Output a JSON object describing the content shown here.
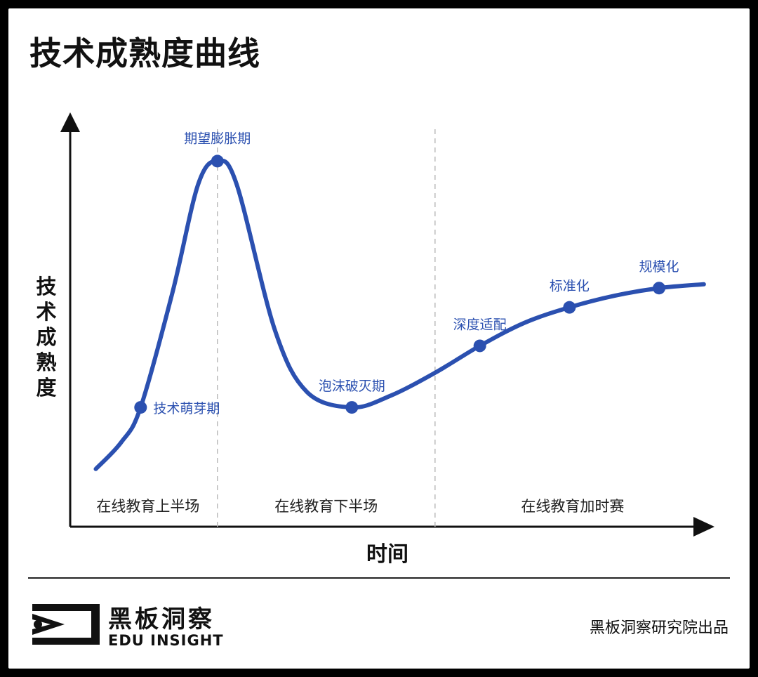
{
  "title": "技术成熟度曲线",
  "brand": {
    "name_cn": "黑板洞察",
    "name_en": "EDU INSIGHT",
    "credit": "黑板洞察研究院出品",
    "logo_icon": "eye-play-logo-icon"
  },
  "colors": {
    "curve": "#2b50b0",
    "label": "#2b50b0",
    "axis": "#111111",
    "guide": "#bbbbbb"
  },
  "chart_data": {
    "type": "line",
    "xlabel": "时间",
    "ylabel": "技术成熟度",
    "grid": false,
    "phases": [
      {
        "label": "在线教育上半场"
      },
      {
        "label": "在线教育下半场"
      },
      {
        "label": "在线教育加时赛"
      }
    ],
    "points": [
      {
        "label": "技术萌芽期",
        "label_pos": "right",
        "x": 0.11,
        "y": 0.31
      },
      {
        "label": "期望膨胀期",
        "label_pos": "above",
        "x": 0.23,
        "y": 0.95
      },
      {
        "label": "泡沫破灭期",
        "label_pos": "above",
        "x": 0.44,
        "y": 0.31
      },
      {
        "label": "深度适配",
        "label_pos": "above",
        "x": 0.64,
        "y": 0.47
      },
      {
        "label": "标准化",
        "label_pos": "above",
        "x": 0.78,
        "y": 0.57
      },
      {
        "label": "规模化",
        "label_pos": "above",
        "x": 0.92,
        "y": 0.62
      }
    ],
    "curve": [
      [
        0.04,
        0.15
      ],
      [
        0.08,
        0.22
      ],
      [
        0.11,
        0.31
      ],
      [
        0.16,
        0.61
      ],
      [
        0.2,
        0.89
      ],
      [
        0.23,
        0.95
      ],
      [
        0.26,
        0.89
      ],
      [
        0.32,
        0.51
      ],
      [
        0.37,
        0.35
      ],
      [
        0.44,
        0.31
      ],
      [
        0.5,
        0.34
      ],
      [
        0.57,
        0.4
      ],
      [
        0.64,
        0.47
      ],
      [
        0.71,
        0.53
      ],
      [
        0.78,
        0.57
      ],
      [
        0.85,
        0.6
      ],
      [
        0.92,
        0.62
      ],
      [
        0.99,
        0.63
      ]
    ],
    "phase_boundaries": [
      0.23,
      0.57
    ]
  }
}
